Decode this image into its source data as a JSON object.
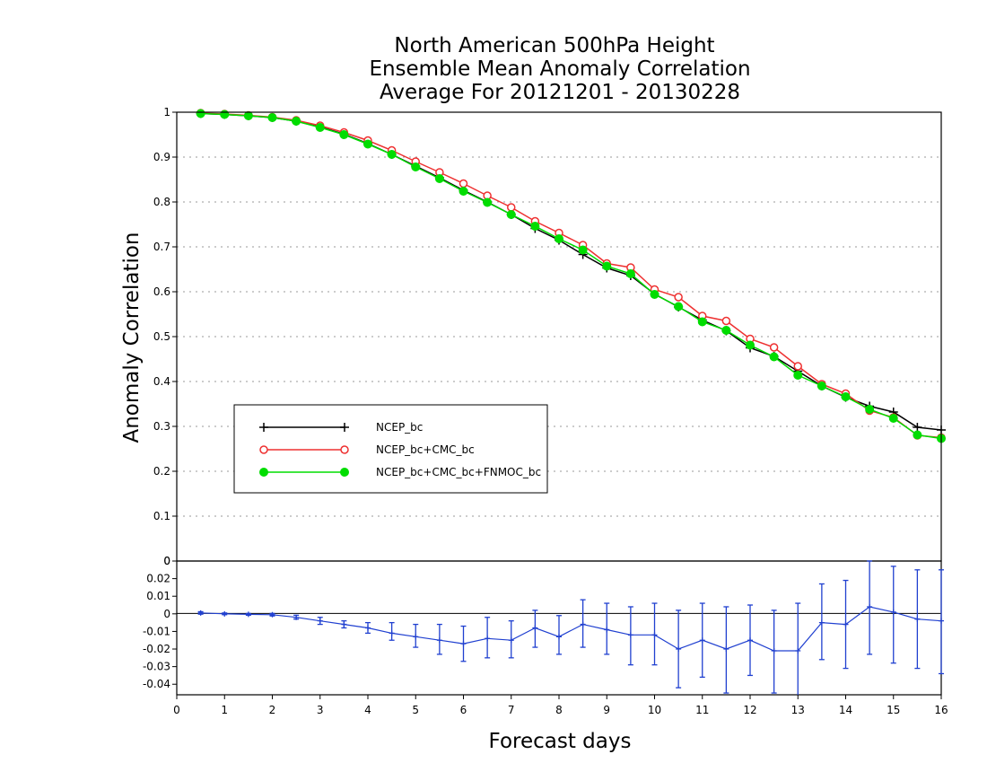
{
  "chart_data": [
    {
      "type": "line",
      "title": [
        "North American 500hPa Height",
        "Ensemble Mean Anomaly Correlation",
        "Average For 20121201 - 20130228"
      ],
      "xlabel": "Forecast days",
      "ylabel": "Anomaly Correlation",
      "xlim": [
        0,
        16
      ],
      "ylim": [
        0,
        1
      ],
      "grid": true,
      "legend_position": "middle-left",
      "x": [
        0.5,
        1,
        1.5,
        2,
        2.5,
        3,
        3.5,
        4,
        4.5,
        5,
        5.5,
        6,
        6.5,
        7,
        7.5,
        8,
        8.5,
        9,
        9.5,
        10,
        10.5,
        11,
        11.5,
        12,
        12.5,
        13,
        13.5,
        14,
        14.5,
        15,
        15.5,
        16
      ],
      "x_ticks": [
        0,
        1,
        2,
        3,
        4,
        5,
        6,
        7,
        8,
        9,
        10,
        11,
        12,
        13,
        14,
        15,
        16
      ],
      "y_ticks": [
        0,
        0.1,
        0.2,
        0.3,
        0.4,
        0.5,
        0.6,
        0.7,
        0.8,
        0.9,
        1
      ],
      "y_tick_labels": [
        "0",
        "0.1",
        "0.2",
        "0.3",
        "0.4",
        "0.5",
        "0.6",
        "0.7",
        "0.8",
        "0.9",
        "1"
      ],
      "series": [
        {
          "name": "NCEP_bc",
          "color": "#000000",
          "marker": "plus",
          "values": [
            0.997,
            0.995,
            0.992,
            0.988,
            0.98,
            0.967,
            0.951,
            0.93,
            0.906,
            0.88,
            0.854,
            0.826,
            0.8,
            0.772,
            0.741,
            0.715,
            0.683,
            0.653,
            0.636,
            0.595,
            0.566,
            0.537,
            0.513,
            0.475,
            0.456,
            0.423,
            0.39,
            0.365,
            0.345,
            0.332,
            0.298,
            0.292
          ]
        },
        {
          "name": "NCEP_bc+CMC_bc",
          "color": "#ee3030",
          "marker": "open-circle",
          "values": [
            0.998,
            0.996,
            0.993,
            0.989,
            0.982,
            0.97,
            0.955,
            0.937,
            0.915,
            0.89,
            0.866,
            0.841,
            0.814,
            0.788,
            0.757,
            0.731,
            0.704,
            0.663,
            0.654,
            0.605,
            0.588,
            0.546,
            0.535,
            0.495,
            0.476,
            0.434,
            0.394,
            0.373,
            0.335,
            0.32,
            0.28,
            0.275
          ]
        },
        {
          "name": "NCEP_bc+CMC_bc+FNMOC_bc",
          "color": "#00dd00",
          "marker": "filled-circle",
          "values": [
            0.997,
            0.995,
            0.992,
            0.988,
            0.98,
            0.966,
            0.95,
            0.929,
            0.906,
            0.878,
            0.852,
            0.824,
            0.799,
            0.772,
            0.746,
            0.718,
            0.693,
            0.657,
            0.64,
            0.594,
            0.567,
            0.533,
            0.514,
            0.481,
            0.455,
            0.414,
            0.39,
            0.366,
            0.338,
            0.318,
            0.281,
            0.273
          ]
        }
      ]
    },
    {
      "type": "line",
      "xlim": [
        0,
        16
      ],
      "ylim": [
        -0.046,
        0.03
      ],
      "grid": false,
      "x": [
        0.5,
        1,
        1.5,
        2,
        2.5,
        3,
        3.5,
        4,
        4.5,
        5,
        5.5,
        6,
        6.5,
        7,
        7.5,
        8,
        8.5,
        9,
        9.5,
        10,
        10.5,
        11,
        11.5,
        12,
        12.5,
        13,
        13.5,
        14,
        14.5,
        15,
        15.5,
        16
      ],
      "x_ticks": [
        0,
        1,
        2,
        3,
        4,
        5,
        6,
        7,
        8,
        9,
        10,
        11,
        12,
        13,
        14,
        15,
        16
      ],
      "x_tick_labels": [
        "0",
        "1",
        "2",
        "3",
        "4",
        "5",
        "6",
        "7",
        "8",
        "9",
        "10",
        "11",
        "12",
        "13",
        "14",
        "15",
        "16"
      ],
      "y_ticks": [
        0.02,
        0.01,
        0,
        -0.01,
        -0.02,
        -0.03,
        -0.04
      ],
      "y_tick_labels": [
        "0.02",
        "0.01",
        "0",
        "-0.01",
        "-0.02",
        "-0.03",
        "-0.04"
      ],
      "series": [
        {
          "color": "#2040d0",
          "values": [
            0.0005,
            0.0,
            -0.0003,
            -0.0005,
            -0.002,
            -0.004,
            -0.006,
            -0.008,
            -0.011,
            -0.013,
            -0.015,
            -0.017,
            -0.014,
            -0.015,
            -0.008,
            -0.013,
            -0.006,
            -0.009,
            -0.012,
            -0.012,
            -0.02,
            -0.015,
            -0.02,
            -0.015,
            -0.021,
            -0.021,
            -0.005,
            -0.006,
            0.004,
            0.001,
            -0.003,
            -0.004
          ],
          "error_low": [
            -0.0002,
            -0.0005,
            -0.0008,
            -0.0012,
            -0.003,
            -0.006,
            -0.008,
            -0.011,
            -0.015,
            -0.019,
            -0.023,
            -0.027,
            -0.025,
            -0.025,
            -0.019,
            -0.023,
            -0.019,
            -0.023,
            -0.029,
            -0.029,
            -0.042,
            -0.036,
            -0.045,
            -0.035,
            -0.045,
            -0.047,
            -0.026,
            -0.031,
            -0.023,
            -0.028,
            -0.031,
            -0.034
          ],
          "error_high": [
            0.0012,
            0.0005,
            0.0002,
            0.0002,
            -0.0008,
            -0.002,
            -0.004,
            -0.005,
            -0.005,
            -0.006,
            -0.006,
            -0.007,
            -0.002,
            -0.004,
            0.002,
            -0.001,
            0.008,
            0.006,
            0.004,
            0.006,
            0.002,
            0.006,
            0.004,
            0.005,
            0.002,
            0.006,
            0.017,
            0.019,
            0.03,
            0.027,
            0.025,
            0.025
          ]
        }
      ]
    }
  ]
}
